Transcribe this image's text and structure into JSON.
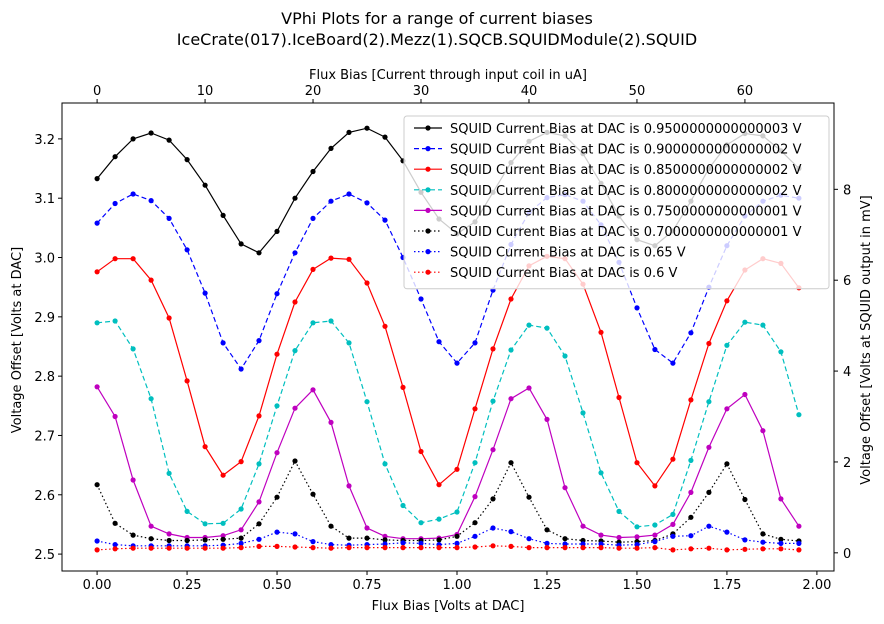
{
  "chart_data": {
    "type": "line",
    "title": "VPhi Plots for a range of current biases",
    "subtitle": "IceCrate(017).IceBoard(2).Mezz(1).SQCB.SQUIDModule(2).SQUID",
    "xlabel": "Flux Bias [Volts at DAC]",
    "ylabel": "Voltage Offset [Volts at DAC]",
    "x2label": "Flux Bias [Current through input coil in uA]",
    "y2label": "Voltage Offset [Volts at SQUID output in mV]",
    "xlim": [
      -0.0975,
      2.0475
    ],
    "ylim": [
      2.4715,
      3.2605
    ],
    "x2lim": [
      -3.25,
      68.25
    ],
    "y2lim": [
      -0.4,
      9.9
    ],
    "xticks": [
      0.0,
      0.25,
      0.5,
      0.75,
      1.0,
      1.25,
      1.5,
      1.75,
      2.0
    ],
    "xticklabels": [
      "0.00",
      "0.25",
      "0.50",
      "0.75",
      "1.00",
      "1.25",
      "1.50",
      "1.75",
      "2.00"
    ],
    "yticks": [
      2.5,
      2.6,
      2.7,
      2.8,
      2.9,
      3.0,
      3.1,
      3.2
    ],
    "yticklabels": [
      "2.5",
      "2.6",
      "2.7",
      "2.8",
      "2.9",
      "3.0",
      "3.1",
      "3.2"
    ],
    "x2ticks": [
      0,
      10,
      20,
      30,
      40,
      50,
      60
    ],
    "x2ticklabels": [
      "0",
      "10",
      "20",
      "30",
      "40",
      "50",
      "60"
    ],
    "y2ticks": [
      0,
      2,
      4,
      6,
      8
    ],
    "y2ticklabels": [
      "0",
      "2",
      "4",
      "6",
      "8"
    ],
    "grid": false,
    "legend_position": "top-right",
    "x": [
      0.0,
      0.05,
      0.1,
      0.15,
      0.2,
      0.25,
      0.3,
      0.35,
      0.4,
      0.45,
      0.5,
      0.55,
      0.6,
      0.65,
      0.7,
      0.75,
      0.8,
      0.85,
      0.9,
      0.95,
      1.0,
      1.05,
      1.1,
      1.15,
      1.2,
      1.25,
      1.3,
      1.35,
      1.4,
      1.45,
      1.5,
      1.55,
      1.6,
      1.65,
      1.7,
      1.75,
      1.8,
      1.85,
      1.9,
      1.95
    ],
    "series": [
      {
        "name": "SQUID Current Bias at DAC is 0.9500000000000003 V",
        "color": "#000000",
        "linestyle": "solid",
        "values": [
          3.133,
          3.17,
          3.2,
          3.21,
          3.198,
          3.165,
          3.122,
          3.071,
          3.023,
          3.008,
          3.044,
          3.1,
          3.145,
          3.184,
          3.211,
          3.218,
          3.203,
          3.163,
          3.11,
          3.065,
          3.04,
          3.06,
          3.11,
          3.16,
          3.196,
          3.211,
          3.205,
          3.175,
          3.125,
          3.07,
          3.03,
          3.02,
          3.045,
          3.095,
          3.15,
          3.19,
          3.209,
          3.205,
          3.18,
          3.15
        ]
      },
      {
        "name": "SQUID Current Bias at DAC is 0.9000000000000002 V",
        "color": "#0000ff",
        "linestyle": "dashed",
        "values": [
          3.058,
          3.091,
          3.107,
          3.096,
          3.066,
          3.013,
          2.94,
          2.856,
          2.812,
          2.86,
          2.939,
          3.008,
          3.066,
          3.095,
          3.107,
          3.092,
          3.063,
          3.0,
          2.93,
          2.858,
          2.822,
          2.856,
          2.945,
          3.022,
          3.076,
          3.101,
          3.106,
          3.095,
          3.055,
          2.992,
          2.915,
          2.845,
          2.822,
          2.873,
          2.95,
          3.02,
          3.07,
          3.095,
          3.105,
          3.1
        ]
      },
      {
        "name": "SQUID Current Bias at DAC is 0.8500000000000002 V",
        "color": "#ff0000",
        "linestyle": "solid",
        "values": [
          2.976,
          2.998,
          2.998,
          2.962,
          2.898,
          2.792,
          2.681,
          2.633,
          2.656,
          2.733,
          2.837,
          2.925,
          2.98,
          2.999,
          2.997,
          2.957,
          2.884,
          2.781,
          2.673,
          2.617,
          2.643,
          2.745,
          2.846,
          2.93,
          2.986,
          3.002,
          2.998,
          2.955,
          2.874,
          2.764,
          2.654,
          2.615,
          2.66,
          2.76,
          2.855,
          2.927,
          2.979,
          2.998,
          2.99,
          2.949
        ]
      },
      {
        "name": "SQUID Current Bias at DAC is 0.8000000000000002 V",
        "color": "#00bfbf",
        "linestyle": "dashed",
        "values": [
          2.89,
          2.893,
          2.846,
          2.762,
          2.636,
          2.572,
          2.551,
          2.552,
          2.576,
          2.652,
          2.75,
          2.843,
          2.89,
          2.893,
          2.856,
          2.757,
          2.652,
          2.582,
          2.553,
          2.559,
          2.571,
          2.654,
          2.758,
          2.844,
          2.886,
          2.881,
          2.834,
          2.738,
          2.637,
          2.572,
          2.546,
          2.549,
          2.567,
          2.658,
          2.757,
          2.852,
          2.891,
          2.886,
          2.841,
          2.735
        ]
      },
      {
        "name": "SQUID Current Bias at DAC is 0.7500000000000001 V",
        "color": "#bf00bf",
        "linestyle": "solid",
        "values": [
          2.782,
          2.732,
          2.625,
          2.547,
          2.534,
          2.528,
          2.528,
          2.531,
          2.541,
          2.588,
          2.671,
          2.746,
          2.777,
          2.722,
          2.615,
          2.544,
          2.53,
          2.526,
          2.526,
          2.527,
          2.533,
          2.597,
          2.676,
          2.762,
          2.78,
          2.727,
          2.612,
          2.547,
          2.532,
          2.528,
          2.529,
          2.532,
          2.55,
          2.604,
          2.68,
          2.745,
          2.769,
          2.708,
          2.593,
          2.547
        ]
      },
      {
        "name": "SQUID Current Bias at DAC is 0.7000000000000001 V",
        "color": "#000000",
        "linestyle": "dotted",
        "values": [
          2.617,
          2.552,
          2.532,
          2.526,
          2.523,
          2.523,
          2.524,
          2.525,
          2.527,
          2.551,
          2.596,
          2.657,
          2.601,
          2.547,
          2.527,
          2.527,
          2.524,
          2.523,
          2.523,
          2.524,
          2.53,
          2.553,
          2.593,
          2.654,
          2.596,
          2.541,
          2.526,
          2.523,
          2.522,
          2.52,
          2.521,
          2.523,
          2.534,
          2.562,
          2.604,
          2.652,
          2.592,
          2.534,
          2.525,
          2.522
        ]
      },
      {
        "name": "SQUID Current Bias at DAC is 0.65 V",
        "color": "#0000ff",
        "linestyle": "dotted",
        "values": [
          2.522,
          2.516,
          2.514,
          2.514,
          2.514,
          2.514,
          2.514,
          2.515,
          2.518,
          2.525,
          2.537,
          2.534,
          2.521,
          2.516,
          2.515,
          2.516,
          2.517,
          2.519,
          2.518,
          2.516,
          2.518,
          2.53,
          2.544,
          2.538,
          2.526,
          2.518,
          2.517,
          2.517,
          2.517,
          2.515,
          2.516,
          2.521,
          2.53,
          2.531,
          2.547,
          2.537,
          2.524,
          2.52,
          2.518,
          2.518
        ]
      },
      {
        "name": "SQUID Current Bias at DAC is 0.6 V",
        "color": "#ff0000",
        "linestyle": "dotted",
        "values": [
          2.507,
          2.509,
          2.51,
          2.51,
          2.51,
          2.51,
          2.51,
          2.51,
          2.511,
          2.513,
          2.513,
          2.512,
          2.511,
          2.51,
          2.511,
          2.511,
          2.511,
          2.511,
          2.511,
          2.511,
          2.511,
          2.512,
          2.514,
          2.513,
          2.511,
          2.511,
          2.511,
          2.511,
          2.511,
          2.51,
          2.51,
          2.511,
          2.507,
          2.509,
          2.51,
          2.507,
          2.508,
          2.509,
          2.509,
          2.507
        ]
      }
    ]
  }
}
